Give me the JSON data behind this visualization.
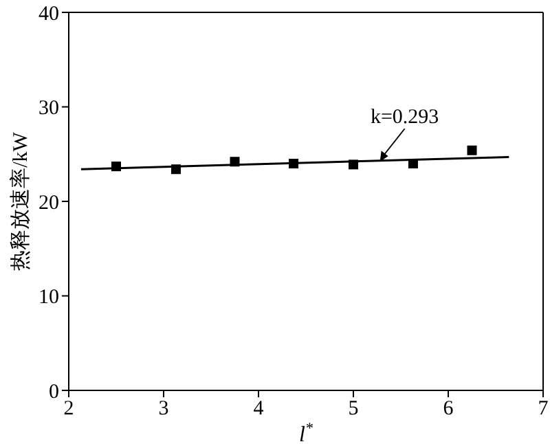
{
  "chart_data": {
    "type": "scatter",
    "xlabel": "l$^{*}$",
    "ylabel": "热释放速率/kW",
    "xlim": [
      2,
      7
    ],
    "xticks": [
      2,
      3,
      4,
      5,
      6,
      7
    ],
    "ylim": [
      0,
      40
    ],
    "yticks": [
      0,
      10,
      20,
      30,
      40
    ],
    "grid": false,
    "legend": false,
    "series": [
      {
        "color": "#000000",
        "marker": "square",
        "x": [
          2.5,
          3.13,
          3.75,
          4.37,
          5.0,
          5.63,
          6.25
        ],
        "values": [
          23.7,
          23.4,
          24.2,
          24.0,
          23.9,
          24.0,
          25.4
        ]
      },
      {
        "type": "line",
        "color": "#000000",
        "marker": "none",
        "x": [
          2.13,
          6.64
        ],
        "values": [
          23.4,
          24.7
        ]
      }
    ],
    "annotations": [
      {
        "text": "k=0.293",
        "x": 5.28,
        "y": 24.2
      }
    ]
  }
}
